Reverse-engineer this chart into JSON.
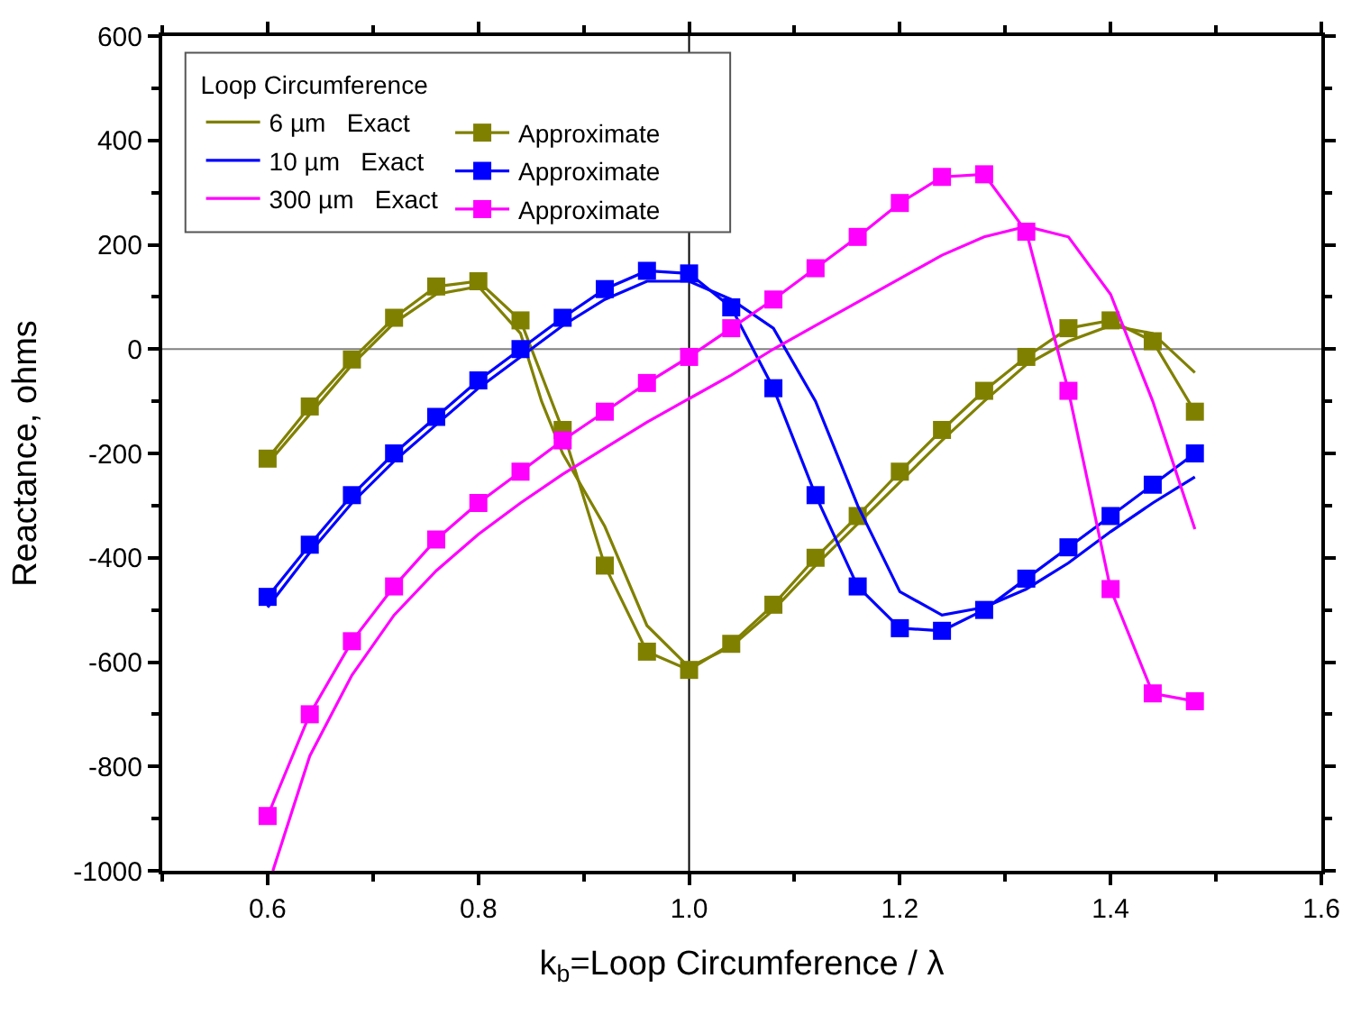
{
  "chart_data": {
    "type": "line",
    "xlabel": "k$_{b}$=Loop Circumference / λ",
    "ylabel": "Reactance, ohms",
    "legend_title": "Loop Circumference",
    "xlim": [
      0.5,
      1.6
    ],
    "xticks": [
      0.6,
      0.8,
      {
        "value": 1.0,
        "label": "1.0"
      },
      1.2,
      1.4,
      1.6
    ],
    "ylim": [
      -1000,
      600
    ],
    "yticks": [
      -1000,
      -800,
      -600,
      -400,
      -200,
      0,
      200,
      400,
      600
    ],
    "grid": false,
    "legend": "top left",
    "ref_lines": [
      {
        "axis": "y",
        "value": 0,
        "color": "#808080"
      },
      {
        "axis": "x",
        "value": 1.0,
        "color": "#000000"
      }
    ],
    "series": [
      {
        "name": "6 µm   Exact",
        "color": "#808000",
        "marker": "none",
        "x": [
          0.6,
          0.64,
          0.68,
          0.72,
          0.76,
          0.8,
          0.84,
          0.86,
          0.88,
          0.92,
          0.96,
          1.0,
          1.04,
          1.08,
          1.12,
          1.16,
          1.2,
          1.24,
          1.28,
          1.32,
          1.36,
          1.4,
          1.44,
          1.48
        ],
        "values": [
          -220,
          -125,
          -30,
          50,
          105,
          120,
          30,
          -100,
          -200,
          -340,
          -530,
          -610,
          -570,
          -500,
          -415,
          -335,
          -255,
          -175,
          -100,
          -30,
          15,
          45,
          30,
          -45
        ]
      },
      {
        "name": "Approximate",
        "color": "#808000",
        "marker": "square",
        "x": [
          0.6,
          0.64,
          0.68,
          0.72,
          0.76,
          0.8,
          0.84,
          0.88,
          0.92,
          0.96,
          1.0,
          1.04,
          1.08,
          1.12,
          1.16,
          1.2,
          1.24,
          1.28,
          1.32,
          1.36,
          1.4,
          1.44,
          1.48
        ],
        "values": [
          -210,
          -110,
          -20,
          60,
          120,
          130,
          55,
          -155,
          -415,
          -580,
          -615,
          -565,
          -490,
          -400,
          -320,
          -235,
          -155,
          -80,
          -15,
          40,
          55,
          15,
          -120
        ]
      },
      {
        "name": "10 µm   Exact",
        "color": "#0000ff",
        "marker": "none",
        "x": [
          0.6,
          0.64,
          0.68,
          0.72,
          0.76,
          0.8,
          0.84,
          0.88,
          0.92,
          0.96,
          1.0,
          1.04,
          1.08,
          1.12,
          1.16,
          1.2,
          1.24,
          1.28,
          1.32,
          1.36,
          1.4,
          1.44,
          1.48
        ],
        "values": [
          -495,
          -390,
          -295,
          -215,
          -145,
          -75,
          -15,
          45,
          95,
          130,
          130,
          95,
          40,
          -100,
          -300,
          -465,
          -510,
          -495,
          -460,
          -410,
          -350,
          -295,
          -245
        ]
      },
      {
        "name": "Approximate",
        "color": "#0000ff",
        "marker": "square",
        "x": [
          0.6,
          0.64,
          0.68,
          0.72,
          0.76,
          0.8,
          0.84,
          0.88,
          0.92,
          0.96,
          1.0,
          1.04,
          1.08,
          1.12,
          1.16,
          1.2,
          1.24,
          1.28,
          1.32,
          1.36,
          1.4,
          1.44,
          1.48
        ],
        "values": [
          -475,
          -375,
          -280,
          -200,
          -130,
          -60,
          0,
          60,
          115,
          150,
          145,
          80,
          -75,
          -280,
          -455,
          -535,
          -540,
          -500,
          -440,
          -380,
          -320,
          -260,
          -200
        ]
      },
      {
        "name": "300 µm   Exact",
        "color": "#ff00ff",
        "marker": "none",
        "x": [
          0.605,
          0.64,
          0.68,
          0.72,
          0.76,
          0.8,
          0.84,
          0.88,
          0.92,
          0.96,
          1.0,
          1.04,
          1.08,
          1.12,
          1.16,
          1.2,
          1.24,
          1.28,
          1.32,
          1.36,
          1.4,
          1.44,
          1.48
        ],
        "values": [
          -1000,
          -780,
          -625,
          -510,
          -425,
          -355,
          -295,
          -240,
          -190,
          -140,
          -95,
          -50,
          0,
          45,
          90,
          135,
          180,
          215,
          235,
          215,
          105,
          -100,
          -345
        ]
      },
      {
        "name": "Approximate",
        "color": "#ff00ff",
        "marker": "square",
        "x": [
          0.6,
          0.64,
          0.68,
          0.72,
          0.76,
          0.8,
          0.84,
          0.88,
          0.92,
          0.96,
          1.0,
          1.04,
          1.08,
          1.12,
          1.16,
          1.2,
          1.24,
          1.28,
          1.32,
          1.36,
          1.4,
          1.44,
          1.48
        ],
        "values": [
          -895,
          -700,
          -560,
          -455,
          -365,
          -295,
          -235,
          -175,
          -120,
          -65,
          -15,
          40,
          95,
          155,
          215,
          280,
          330,
          335,
          225,
          -80,
          -460,
          -660,
          -675
        ]
      }
    ]
  }
}
